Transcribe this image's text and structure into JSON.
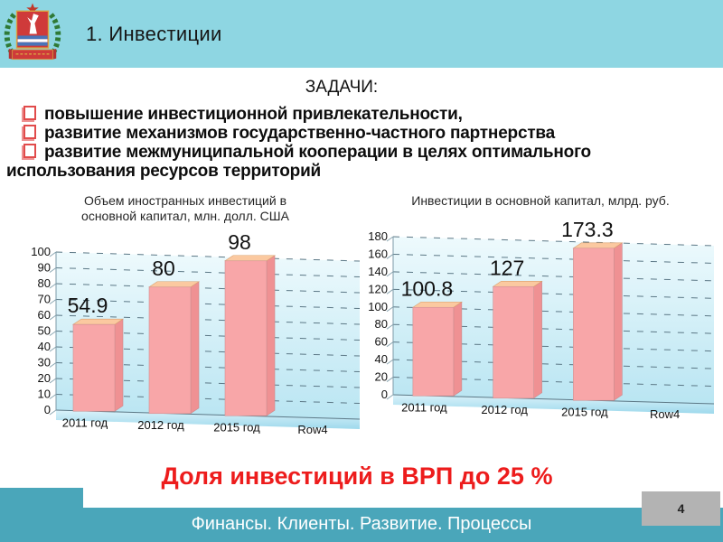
{
  "slide": {
    "title": "1. Инвестиции",
    "page_number": "4",
    "footer": "Финансы. Клиенты. Развитие. Процессы",
    "highlight": "Доля инвестиций в ВРП до 25 %"
  },
  "tasks": {
    "heading": "ЗАДАЧИ:",
    "items": [
      "повышение инвестиционной привлекательности,",
      "развитие механизмов государственно-частного партнерства",
      "развитие межмуниципальной кооперации в целях оптимального использования ресурсов территорий"
    ]
  },
  "colors": {
    "header_bg": "#8ed6e2",
    "footer_bg": "#4aa6ba",
    "accent_red": "#ed1c1c",
    "page_box_bg": "#b3b3b3",
    "bar_front": "#f8a6a8",
    "bar_top": "#fbc9a0",
    "bar_side": "#ef9193"
  },
  "chart_data": [
    {
      "type": "bar",
      "style": "3d-bar",
      "title": "Объем иностранных инвестиций в основной капитал, млн. долл. США",
      "categories": [
        "2011 год",
        "2012 год",
        "2015 год",
        "Row4"
      ],
      "values": [
        54.9,
        80,
        98,
        null
      ],
      "labels": [
        "54.9",
        "80",
        "98"
      ],
      "ylim": [
        0,
        100
      ],
      "ytick_step": 10,
      "grid": true,
      "legend": false
    },
    {
      "type": "bar",
      "style": "3d-bar",
      "title": "Инвестиции в основной капитал, млрд. руб.",
      "categories": [
        "2011 год",
        "2012 год",
        "2015 год",
        "Row4"
      ],
      "values": [
        100.8,
        127,
        173.3,
        null
      ],
      "labels": [
        "100.8",
        "127",
        "173.3"
      ],
      "ylim": [
        0,
        180
      ],
      "ytick_step": 20,
      "grid": true,
      "legend": false
    }
  ]
}
